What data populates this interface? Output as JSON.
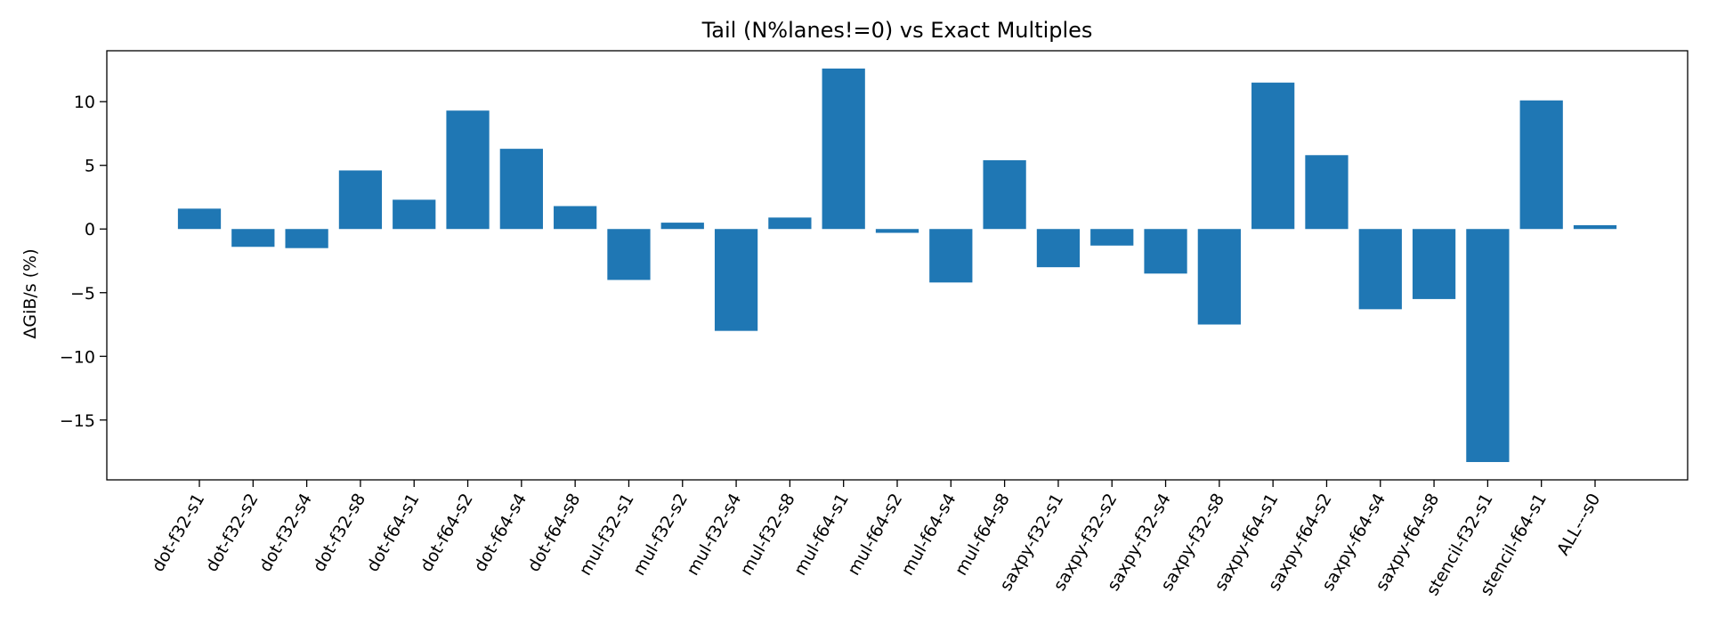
{
  "chart_data": {
    "type": "bar",
    "title": "Tail (N%lanes!=0) vs Exact Multiples",
    "xlabel": "",
    "ylabel": "ΔGiB/s (%)",
    "ylim": [
      -19.7,
      14.0
    ],
    "yticks": [
      10,
      5,
      0,
      -5,
      -10,
      -15
    ],
    "bar_color": "#1f77b4",
    "grid": false,
    "categories": [
      "dot-f32-s1",
      "dot-f32-s2",
      "dot-f32-s4",
      "dot-f32-s8",
      "dot-f64-s1",
      "dot-f64-s2",
      "dot-f64-s4",
      "dot-f64-s8",
      "mul-f32-s1",
      "mul-f32-s2",
      "mul-f32-s4",
      "mul-f32-s8",
      "mul-f64-s1",
      "mul-f64-s2",
      "mul-f64-s4",
      "mul-f64-s8",
      "saxpy-f32-s1",
      "saxpy-f32-s2",
      "saxpy-f32-s4",
      "saxpy-f32-s8",
      "saxpy-f64-s1",
      "saxpy-f64-s2",
      "saxpy-f64-s4",
      "saxpy-f64-s8",
      "stencil-f32-s1",
      "stencil-f64-s1",
      "ALL---s0"
    ],
    "values": [
      1.6,
      -1.4,
      -1.5,
      4.6,
      2.3,
      9.3,
      6.3,
      1.8,
      -4.0,
      0.5,
      -8.0,
      0.9,
      12.6,
      -0.3,
      -4.2,
      5.4,
      -3.0,
      -1.3,
      -3.5,
      -7.5,
      11.5,
      5.8,
      -6.3,
      -5.5,
      -18.3,
      10.1,
      0.3
    ]
  }
}
